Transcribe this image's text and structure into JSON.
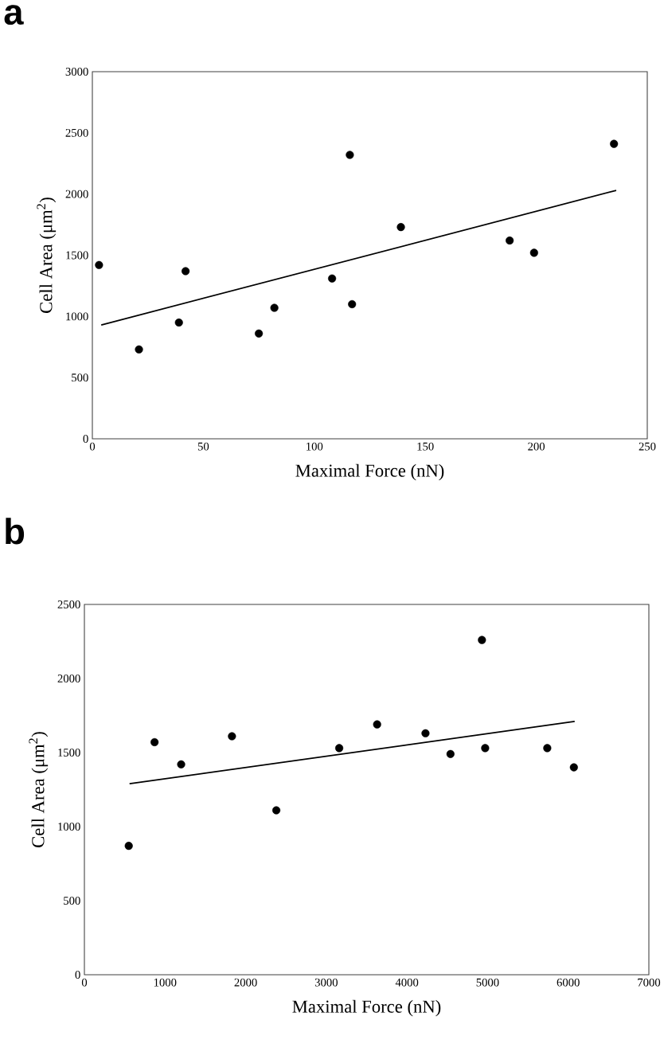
{
  "chart_data": [
    {
      "type": "scatter",
      "title": "a",
      "xlabel": "Maximal Force (nN)",
      "ylabel": "Cell Area (μm$^{2}$)",
      "xlim": [
        0,
        250
      ],
      "ylim": [
        0,
        3000
      ],
      "xticks": [
        0,
        50,
        100,
        150,
        200,
        250
      ],
      "yticks": [
        0,
        500,
        1000,
        1500,
        2000,
        2500,
        3000
      ],
      "series": [
        {
          "color": "#000000",
          "marker": "circle",
          "x": [
            3,
            21,
            39,
            42,
            75,
            82,
            108,
            116,
            117,
            139,
            188,
            199,
            235
          ],
          "values": [
            1420,
            730,
            950,
            1370,
            860,
            1070,
            1310,
            2320,
            1100,
            1730,
            1620,
            1520,
            2410
          ]
        },
        {
          "type": "line",
          "color": "#000000",
          "line_style": "solid",
          "x": [
            4,
            236
          ],
          "values": [
            930,
            2030
          ]
        }
      ]
    },
    {
      "type": "scatter",
      "title": "b",
      "xlabel": "Maximal Force (nN)",
      "ylabel": "Cell Area (μm$^{2}$)",
      "xlim": [
        0,
        7000
      ],
      "ylim": [
        0,
        2500
      ],
      "xticks": [
        0,
        1000,
        2000,
        3000,
        4000,
        5000,
        6000,
        7000
      ],
      "yticks": [
        0,
        500,
        1000,
        1500,
        2000,
        2500
      ],
      "series": [
        {
          "color": "#000000",
          "marker": "circle",
          "x": [
            550,
            870,
            1200,
            1830,
            2380,
            3160,
            3630,
            4230,
            4540,
            4930,
            4970,
            5740,
            6070
          ],
          "values": [
            870,
            1570,
            1420,
            1610,
            1110,
            1530,
            1690,
            1630,
            1490,
            2260,
            1530,
            1530,
            1400
          ]
        },
        {
          "type": "line",
          "color": "#000000",
          "line_style": "solid",
          "x": [
            560,
            6080
          ],
          "values": [
            1290,
            1710
          ]
        }
      ]
    }
  ]
}
